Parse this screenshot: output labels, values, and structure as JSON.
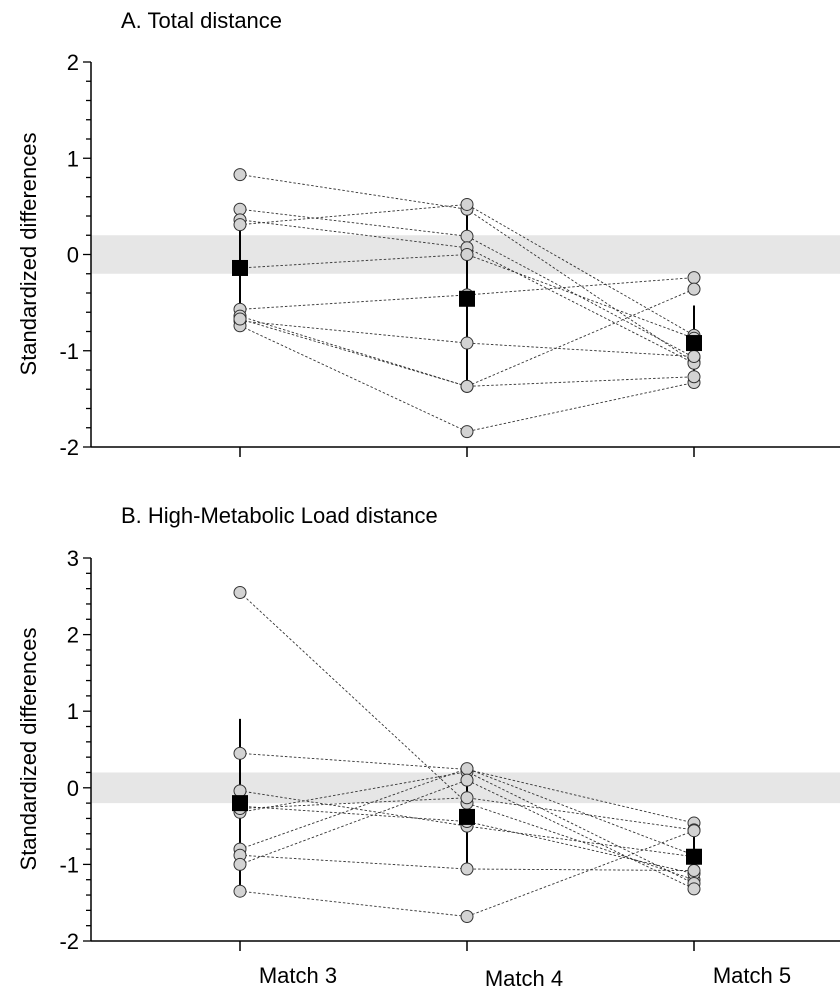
{
  "chart_data": [
    {
      "type": "scatter",
      "title": "A. Total distance",
      "xlabel": "",
      "ylabel": "Standardized differences",
      "categories": [
        "Match 3",
        "Match 4",
        "Match 5"
      ],
      "ylim": [
        -2,
        2
      ],
      "yticks": [
        "-2",
        "-1",
        "0",
        "1",
        "2"
      ],
      "shaded_band": [
        -0.2,
        0.2
      ],
      "individuals": [
        [
          0.83,
          0.47,
          -1.12
        ],
        [
          0.47,
          0.19,
          -1.07
        ],
        [
          0.36,
          0.07,
          -1.13
        ],
        [
          0.31,
          0.52,
          -0.84
        ],
        [
          -0.14,
          0.0,
          -0.87
        ],
        [
          -0.57,
          -0.42,
          -0.24
        ],
        [
          -0.64,
          -1.37,
          -0.36
        ],
        [
          -0.69,
          -0.92,
          -1.06
        ],
        [
          -0.74,
          -1.84,
          -1.33
        ],
        [
          -0.67,
          -1.37,
          -1.27
        ]
      ],
      "mean": [
        -0.14,
        -0.46,
        -0.92
      ],
      "sd_low": [
        -0.8,
        -1.4,
        -1.32
      ],
      "sd_high": [
        0.52,
        0.5,
        -0.53
      ]
    },
    {
      "type": "scatter",
      "title": "B. High-Metabolic Load distance",
      "xlabel": "",
      "ylabel": "Standardized differences",
      "categories": [
        "Match 3",
        "Match 4",
        "Match 5"
      ],
      "ylim": [
        -2,
        3
      ],
      "yticks": [
        "-2",
        "-1",
        "0",
        "1",
        "2",
        "3"
      ],
      "shaded_band": [
        -0.2,
        0.2
      ],
      "individuals": [
        [
          2.55,
          -0.2,
          -1.2
        ],
        [
          0.45,
          0.24,
          -0.46
        ],
        [
          -0.04,
          -0.5,
          -0.9
        ],
        [
          -0.24,
          -0.44,
          -1.12
        ],
        [
          -0.32,
          0.21,
          -1.25
        ],
        [
          -0.27,
          -0.13,
          -0.55
        ],
        [
          -0.8,
          0.25,
          -0.88
        ],
        [
          -0.88,
          -1.06,
          -1.08
        ],
        [
          -1.0,
          0.1,
          -1.32
        ],
        [
          -1.35,
          -1.68,
          -0.56
        ]
      ],
      "mean": [
        -0.2,
        -0.38,
        -0.9
      ],
      "sd_low": [
        -1.3,
        -1.05,
        -1.22
      ],
      "sd_high": [
        0.9,
        0.28,
        -0.55
      ]
    }
  ]
}
